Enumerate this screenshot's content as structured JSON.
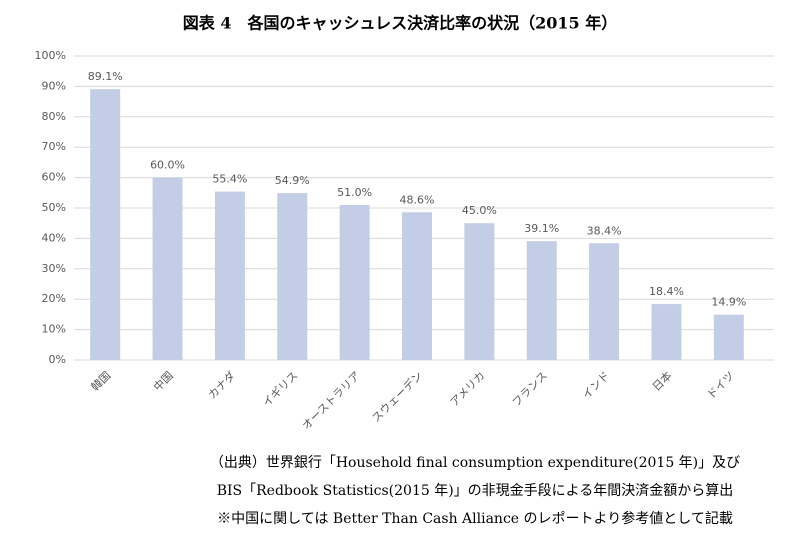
{
  "chart_data": {
    "type": "bar",
    "title": "図表 4　各国のキャッシュレス決済比率の状況（2015 年）",
    "categories": [
      "韓国",
      "中国",
      "カナダ",
      "イギリス",
      "オーストラリア",
      "スウェーデン",
      "アメリカ",
      "フランス",
      "インド",
      "日本",
      "ドイツ"
    ],
    "values": [
      89.1,
      60.0,
      55.4,
      54.9,
      51.0,
      48.6,
      45.0,
      39.1,
      38.4,
      18.4,
      14.9
    ],
    "value_labels": [
      "89.1%",
      "60.0%",
      "55.4%",
      "54.9%",
      "51.0%",
      "48.6%",
      "45.0%",
      "39.1%",
      "38.4%",
      "18.4%",
      "14.9%"
    ],
    "color": "#c3cde6",
    "ylim": [
      0,
      100
    ],
    "yticks": [
      {
        "value": 0,
        "label": "0%"
      },
      {
        "value": 10,
        "label": "10%"
      },
      {
        "value": 20,
        "label": "20%"
      },
      {
        "value": 30,
        "label": "30%"
      },
      {
        "value": 40,
        "label": "40%"
      },
      {
        "value": 50,
        "label": "50%"
      },
      {
        "value": 60,
        "label": "60%"
      },
      {
        "value": 70,
        "label": "70%"
      },
      {
        "value": 80,
        "label": "80%"
      },
      {
        "value": 90,
        "label": "90%"
      },
      {
        "value": 100,
        "label": "100%"
      }
    ],
    "grid": true,
    "notes": [
      "（出典）世界銀行「Household final consumption expenditure(2015 年)」及び",
      "BIS「Redbook Statistics(2015 年)」の非現金手段による年間決済金額から算出",
      "※中国に関しては Better Than Cash Alliance のレポートより参考値として記載"
    ]
  }
}
